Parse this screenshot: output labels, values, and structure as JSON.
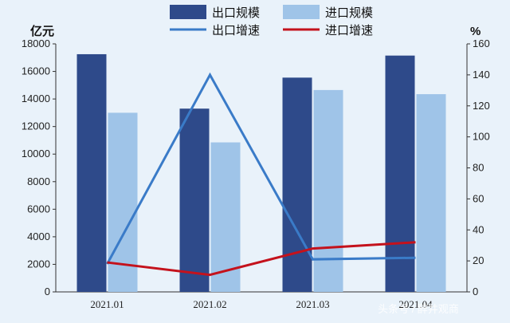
{
  "chart_data": {
    "type": "bar",
    "categories": [
      "2021.01",
      "2021.02",
      "2021.03",
      "2021.04"
    ],
    "xtick_labels": [
      "2021.01",
      "2021.02",
      "2021.03",
      "2021.04"
    ],
    "y_left_unit": "亿元",
    "y_right_unit": "%",
    "y_left_range": [
      0,
      18000
    ],
    "y_left_ticks": [
      0,
      2000,
      4000,
      6000,
      8000,
      10000,
      12000,
      14000,
      16000,
      18000
    ],
    "y_right_range": [
      0,
      160
    ],
    "y_right_ticks": [
      0,
      20,
      40,
      60,
      80,
      100,
      120,
      140,
      160
    ],
    "grid": false,
    "legend_position": "top",
    "series": [
      {
        "name": "出口规模",
        "type": "bar",
        "axis": "left",
        "color": "#2e4a8a",
        "values": [
          17250,
          13300,
          15550,
          17150
        ]
      },
      {
        "name": "进口规模",
        "type": "bar",
        "axis": "left",
        "color": "#9fc4e8",
        "values": [
          13000,
          10850,
          14650,
          14350
        ]
      },
      {
        "name": "出口增速",
        "type": "line",
        "axis": "right",
        "color": "#3a7bc8",
        "values": [
          18,
          140,
          21,
          22
        ]
      },
      {
        "name": "进口增速",
        "type": "line",
        "axis": "right",
        "color": "#c4121c",
        "values": [
          19,
          11,
          28,
          32
        ]
      }
    ],
    "watermark": "头条号 / 醉井观商"
  }
}
